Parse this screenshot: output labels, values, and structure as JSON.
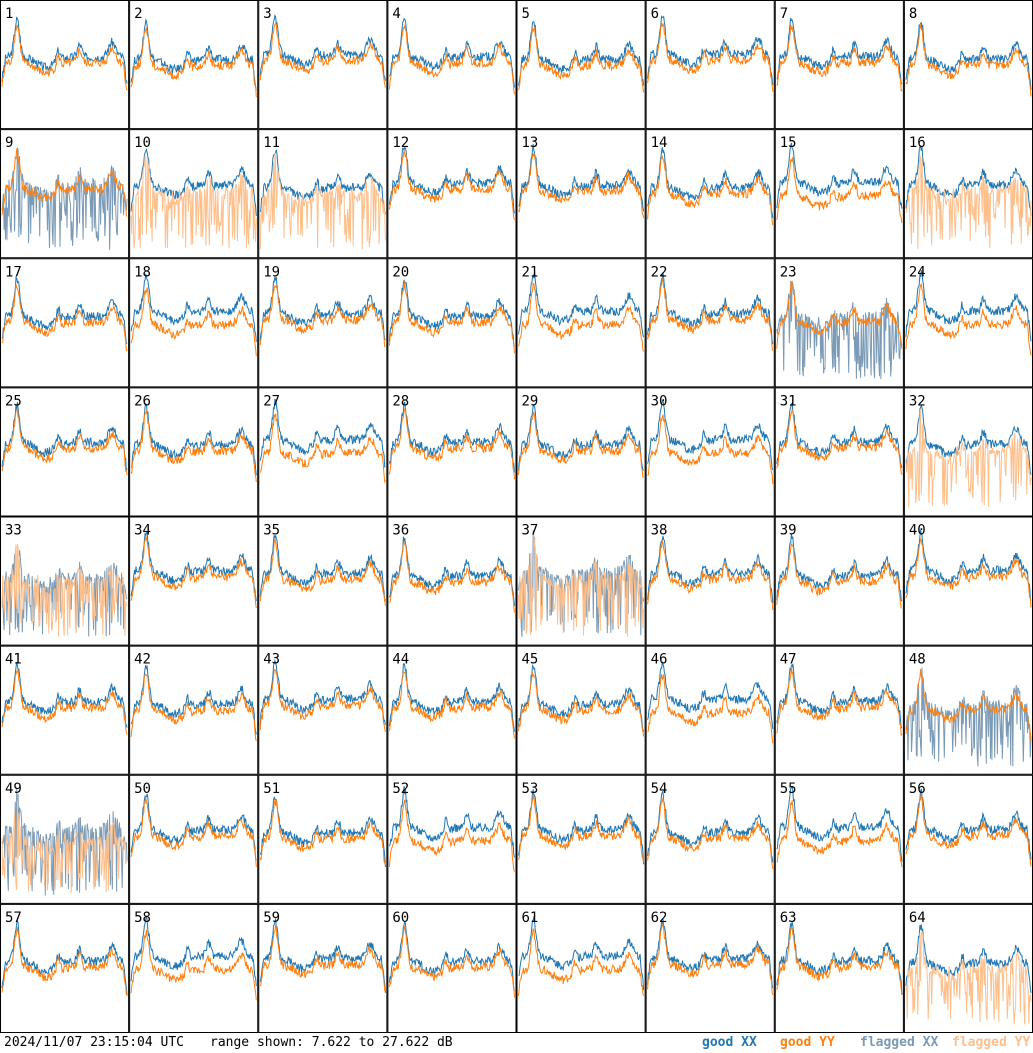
{
  "chart_data": {
    "type": "line",
    "grid": {
      "rows": 8,
      "cols": 8
    },
    "y_range_db": [
      7.622,
      27.622
    ],
    "panels": [
      {
        "id": "1",
        "xx": "good",
        "yy": "good"
      },
      {
        "id": "2",
        "xx": "good",
        "yy": "good"
      },
      {
        "id": "3",
        "xx": "good",
        "yy": "good"
      },
      {
        "id": "4",
        "xx": "good",
        "yy": "good"
      },
      {
        "id": "5",
        "xx": "good",
        "yy": "good"
      },
      {
        "id": "6",
        "xx": "good",
        "yy": "good"
      },
      {
        "id": "7",
        "xx": "good",
        "yy": "good"
      },
      {
        "id": "8",
        "xx": "good",
        "yy": "good"
      },
      {
        "id": "9",
        "xx": "flagged",
        "yy": "good"
      },
      {
        "id": "10",
        "xx": "good",
        "yy": "flagged"
      },
      {
        "id": "11",
        "xx": "good",
        "yy": "flagged"
      },
      {
        "id": "12",
        "xx": "good",
        "yy": "good"
      },
      {
        "id": "13",
        "xx": "good",
        "yy": "good"
      },
      {
        "id": "14",
        "xx": "good",
        "yy": "good"
      },
      {
        "id": "15",
        "xx": "good",
        "yy": "good"
      },
      {
        "id": "16",
        "xx": "good",
        "yy": "flagged"
      },
      {
        "id": "17",
        "xx": "good",
        "yy": "good"
      },
      {
        "id": "18",
        "xx": "good",
        "yy": "good"
      },
      {
        "id": "19",
        "xx": "good",
        "yy": "good"
      },
      {
        "id": "20",
        "xx": "good",
        "yy": "good"
      },
      {
        "id": "21",
        "xx": "good",
        "yy": "good"
      },
      {
        "id": "22",
        "xx": "good",
        "yy": "good"
      },
      {
        "id": "23",
        "xx": "flagged",
        "yy": "good"
      },
      {
        "id": "24",
        "xx": "good",
        "yy": "good"
      },
      {
        "id": "25",
        "xx": "good",
        "yy": "good"
      },
      {
        "id": "26",
        "xx": "good",
        "yy": "good"
      },
      {
        "id": "27",
        "xx": "good",
        "yy": "good"
      },
      {
        "id": "28",
        "xx": "good",
        "yy": "good"
      },
      {
        "id": "29",
        "xx": "good",
        "yy": "good"
      },
      {
        "id": "30",
        "xx": "good",
        "yy": "good"
      },
      {
        "id": "31",
        "xx": "good",
        "yy": "good"
      },
      {
        "id": "32",
        "xx": "good",
        "yy": "flagged"
      },
      {
        "id": "33",
        "xx": "flagged",
        "yy": "flagged"
      },
      {
        "id": "34",
        "xx": "good",
        "yy": "good"
      },
      {
        "id": "35",
        "xx": "good",
        "yy": "good"
      },
      {
        "id": "36",
        "xx": "good",
        "yy": "good"
      },
      {
        "id": "37",
        "xx": "flagged",
        "yy": "flagged"
      },
      {
        "id": "38",
        "xx": "good",
        "yy": "good"
      },
      {
        "id": "39",
        "xx": "good",
        "yy": "good"
      },
      {
        "id": "40",
        "xx": "good",
        "yy": "good"
      },
      {
        "id": "41",
        "xx": "good",
        "yy": "good"
      },
      {
        "id": "42",
        "xx": "good",
        "yy": "good"
      },
      {
        "id": "43",
        "xx": "good",
        "yy": "good"
      },
      {
        "id": "44",
        "xx": "good",
        "yy": "good"
      },
      {
        "id": "45",
        "xx": "good",
        "yy": "good"
      },
      {
        "id": "46",
        "xx": "good",
        "yy": "good"
      },
      {
        "id": "47",
        "xx": "good",
        "yy": "good"
      },
      {
        "id": "48",
        "xx": "flagged",
        "yy": "good"
      },
      {
        "id": "49",
        "xx": "flagged",
        "yy": "flagged"
      },
      {
        "id": "50",
        "xx": "good",
        "yy": "good"
      },
      {
        "id": "51",
        "xx": "good",
        "yy": "good"
      },
      {
        "id": "52",
        "xx": "good",
        "yy": "good"
      },
      {
        "id": "53",
        "xx": "good",
        "yy": "good"
      },
      {
        "id": "54",
        "xx": "good",
        "yy": "good"
      },
      {
        "id": "55",
        "xx": "good",
        "yy": "good"
      },
      {
        "id": "56",
        "xx": "good",
        "yy": "good"
      },
      {
        "id": "57",
        "xx": "good",
        "yy": "good"
      },
      {
        "id": "58",
        "xx": "good",
        "yy": "good"
      },
      {
        "id": "59",
        "xx": "good",
        "yy": "good"
      },
      {
        "id": "60",
        "xx": "good",
        "yy": "good"
      },
      {
        "id": "61",
        "xx": "good",
        "yy": "good"
      },
      {
        "id": "62",
        "xx": "good",
        "yy": "good"
      },
      {
        "id": "63",
        "xx": "good",
        "yy": "good"
      },
      {
        "id": "64",
        "xx": "good",
        "yy": "flagged"
      }
    ],
    "legend": [
      {
        "label": "good XX",
        "color": "#1f77b4"
      },
      {
        "label": "good YY",
        "color": "#ff7f0e"
      },
      {
        "label": "flagged XX",
        "color": "#7a9ab5"
      },
      {
        "label": "flagged YY",
        "color": "#ffbf8a"
      }
    ]
  },
  "footer": {
    "timestamp": "2024/11/07 23:15:04 UTC",
    "range": "range shown: 7.622 to 27.622 dB"
  }
}
